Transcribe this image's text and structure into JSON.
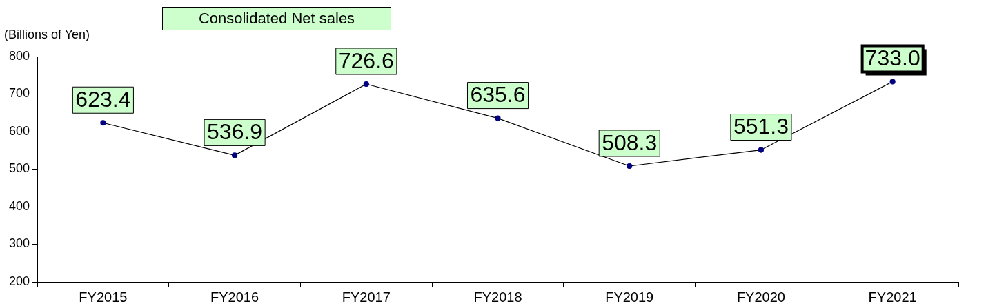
{
  "chart_data": {
    "type": "line",
    "title": "Consolidated Net sales",
    "ylabel": "(Billions of Yen)",
    "categories": [
      "FY2015",
      "FY2016",
      "FY2017",
      "FY2018",
      "FY2019",
      "FY2020",
      "FY2021"
    ],
    "series": [
      {
        "color": "#000000",
        "values": [
          623.4,
          536.9,
          726.6,
          635.6,
          508.3,
          551.3,
          733.0
        ]
      }
    ],
    "ylim": [
      200,
      800
    ],
    "yticks": [
      200,
      300,
      400,
      500,
      600,
      700,
      800
    ],
    "value_labels": [
      "623.4",
      "536.9",
      "726.6",
      "635.6",
      "508.3",
      "551.3",
      "733.0"
    ],
    "grid": false,
    "legend": false,
    "marker": "circle",
    "line_style": "solid"
  }
}
